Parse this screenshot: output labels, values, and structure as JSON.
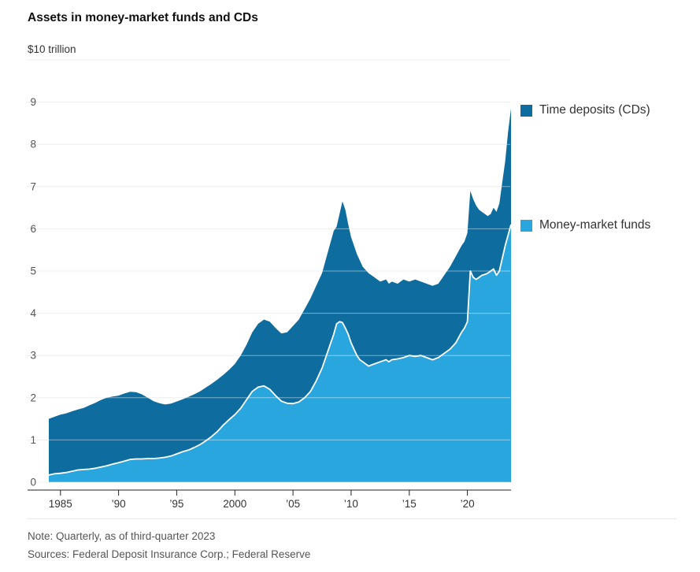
{
  "chart_data": {
    "type": "area",
    "stacked": true,
    "title": "Assets in money-market funds and CDs",
    "unit_label": "$10 trillion",
    "xlabel": "",
    "ylabel": "",
    "ylim": [
      0,
      10
    ],
    "yticks": [
      0,
      1,
      2,
      3,
      4,
      5,
      6,
      7,
      8,
      9
    ],
    "xlim": [
      1984,
      2023.75
    ],
    "xticks": [
      {
        "x": 1985,
        "label": "1985"
      },
      {
        "x": 1990,
        "label": "’90"
      },
      {
        "x": 1995,
        "label": "’95"
      },
      {
        "x": 2000,
        "label": "2000"
      },
      {
        "x": 2005,
        "label": "’05"
      },
      {
        "x": 2010,
        "label": "’10"
      },
      {
        "x": 2015,
        "label": "’15"
      },
      {
        "x": 2020,
        "label": "’20"
      }
    ],
    "legend_position": "right",
    "legend": [
      {
        "label": "Time deposits (CDs)",
        "color": "#0e6d9e"
      },
      {
        "label": "Money-market funds",
        "color": "#2aa6de"
      }
    ],
    "divider_line_color": "#ffffff",
    "gridline_color": "#e4e4e4",
    "note": "Note: Quarterly, as of third-quarter 2023",
    "sources": "Sources: Federal Deposit Insurance Corp.; Federal Reserve",
    "x": [
      1984,
      1984.5,
      1985,
      1985.5,
      1986,
      1986.5,
      1987,
      1987.5,
      1988,
      1988.5,
      1989,
      1989.5,
      1990,
      1990.5,
      1991,
      1991.5,
      1992,
      1992.5,
      1993,
      1993.5,
      1994,
      1994.5,
      1995,
      1995.5,
      1996,
      1996.5,
      1997,
      1997.5,
      1998,
      1998.5,
      1999,
      1999.5,
      2000,
      2000.5,
      2001,
      2001.5,
      2002,
      2002.5,
      2003,
      2003.5,
      2004,
      2004.5,
      2005,
      2005.5,
      2006,
      2006.5,
      2007,
      2007.5,
      2008,
      2008.25,
      2008.5,
      2008.75,
      2009,
      2009.25,
      2009.5,
      2009.75,
      2010,
      2010.25,
      2010.5,
      2010.75,
      2011,
      2011.5,
      2012,
      2012.5,
      2013,
      2013.25,
      2013.5,
      2014,
      2014.5,
      2015,
      2015.5,
      2016,
      2016.5,
      2017,
      2017.5,
      2018,
      2018.5,
      2019,
      2019.5,
      2019.75,
      2020,
      2020.25,
      2020.5,
      2020.75,
      2021,
      2021.25,
      2021.5,
      2021.75,
      2022,
      2022.25,
      2022.5,
      2022.75,
      2023,
      2023.25,
      2023.5,
      2023.75
    ],
    "series": [
      {
        "name": "Money-market funds",
        "color": "#2aa6de",
        "values": [
          0.17,
          0.2,
          0.21,
          0.23,
          0.26,
          0.29,
          0.3,
          0.31,
          0.33,
          0.36,
          0.39,
          0.43,
          0.46,
          0.5,
          0.54,
          0.55,
          0.55,
          0.56,
          0.56,
          0.57,
          0.59,
          0.62,
          0.67,
          0.72,
          0.76,
          0.82,
          0.89,
          0.98,
          1.08,
          1.2,
          1.35,
          1.48,
          1.6,
          1.75,
          1.95,
          2.15,
          2.25,
          2.28,
          2.2,
          2.05,
          1.92,
          1.87,
          1.86,
          1.9,
          2.0,
          2.15,
          2.4,
          2.7,
          3.1,
          3.3,
          3.5,
          3.75,
          3.8,
          3.78,
          3.65,
          3.5,
          3.3,
          3.15,
          3.0,
          2.9,
          2.85,
          2.75,
          2.8,
          2.85,
          2.9,
          2.85,
          2.9,
          2.92,
          2.95,
          3.0,
          2.98,
          3.0,
          2.95,
          2.9,
          2.95,
          3.05,
          3.15,
          3.3,
          3.55,
          3.65,
          3.8,
          5.0,
          4.85,
          4.8,
          4.85,
          4.9,
          4.92,
          4.95,
          5.0,
          5.05,
          4.9,
          5.0,
          5.3,
          5.6,
          5.85,
          6.1
        ]
      },
      {
        "name": "Time deposits (CDs)",
        "color": "#0e6d9e",
        "values": [
          1.33,
          1.35,
          1.39,
          1.4,
          1.42,
          1.43,
          1.46,
          1.51,
          1.55,
          1.59,
          1.61,
          1.6,
          1.59,
          1.6,
          1.6,
          1.58,
          1.53,
          1.44,
          1.36,
          1.3,
          1.25,
          1.24,
          1.24,
          1.24,
          1.26,
          1.26,
          1.26,
          1.26,
          1.25,
          1.23,
          1.19,
          1.18,
          1.2,
          1.25,
          1.3,
          1.4,
          1.5,
          1.57,
          1.6,
          1.6,
          1.6,
          1.68,
          1.84,
          1.95,
          2.1,
          2.2,
          2.25,
          2.25,
          2.35,
          2.4,
          2.45,
          2.3,
          2.55,
          2.87,
          2.8,
          2.6,
          2.5,
          2.45,
          2.4,
          2.35,
          2.25,
          2.2,
          2.05,
          1.9,
          1.9,
          1.85,
          1.85,
          1.78,
          1.85,
          1.75,
          1.82,
          1.75,
          1.75,
          1.75,
          1.75,
          1.85,
          1.95,
          2.05,
          2.05,
          2.05,
          2.1,
          1.9,
          1.85,
          1.75,
          1.6,
          1.5,
          1.43,
          1.35,
          1.35,
          1.45,
          1.5,
          1.6,
          1.8,
          2.0,
          2.45,
          2.75
        ]
      }
    ]
  }
}
